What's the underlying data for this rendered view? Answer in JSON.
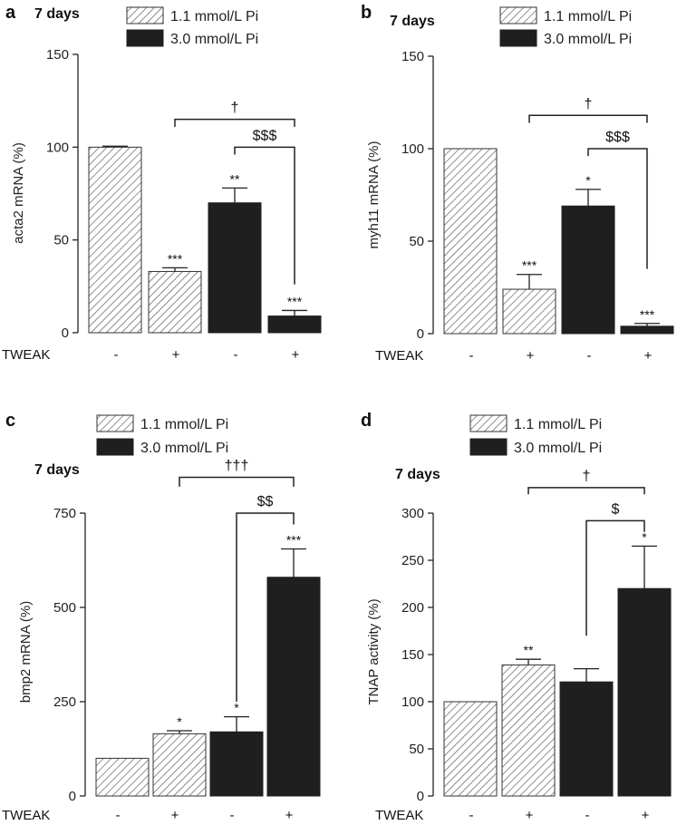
{
  "colors": {
    "axis": "#222222",
    "solid": "#1f1f1f",
    "hatch": "#555555",
    "bar_border": "#333333"
  },
  "legend_labels": [
    "1.1 mmol/L Pi",
    "3.0 mmol/L Pi"
  ],
  "chart_data": [
    {
      "panel": "a",
      "type": "bar",
      "title": "7 days",
      "ylabel": "acta2 mRNA (%)",
      "ylim": [
        0,
        150
      ],
      "yticks": [
        0,
        50,
        100,
        150
      ],
      "x_label": "TWEAK",
      "categories": [
        "-",
        "+",
        "-",
        "+"
      ],
      "groups": [
        "1.1 mmol/L Pi",
        "1.1 mmol/L Pi",
        "3.0 mmol/L Pi",
        "3.0 mmol/L Pi"
      ],
      "values": [
        100,
        33,
        70,
        9
      ],
      "errors": [
        0.5,
        2,
        8,
        3
      ],
      "significance": [
        "",
        "***",
        "**",
        "***"
      ],
      "brackets": [
        {
          "from": 1,
          "to": 3,
          "label": "†",
          "level": 115,
          "left_drop": 111,
          "right_drop": 111
        },
        {
          "from": 2,
          "to": 3,
          "label": "$$$",
          "level": 100,
          "left_drop": 96,
          "right_drop": 26
        }
      ]
    },
    {
      "panel": "b",
      "type": "bar",
      "title": "7 days",
      "ylabel": "myh11 mRNA (%)",
      "ylim": [
        0,
        150
      ],
      "yticks": [
        0,
        50,
        100,
        150
      ],
      "x_label": "TWEAK",
      "categories": [
        "-",
        "+",
        "-",
        "+"
      ],
      "groups": [
        "1.1 mmol/L Pi",
        "1.1 mmol/L Pi",
        "3.0 mmol/L Pi",
        "3.0 mmol/L Pi"
      ],
      "values": [
        100,
        24,
        69,
        4
      ],
      "errors": [
        0,
        8,
        9,
        1.5
      ],
      "significance": [
        "",
        "***",
        "*",
        "***"
      ],
      "brackets": [
        {
          "from": 1,
          "to": 3,
          "label": "†",
          "level": 118,
          "left_drop": 114,
          "right_drop": 114
        },
        {
          "from": 2,
          "to": 3,
          "label": "$$$",
          "level": 100,
          "left_drop": 96,
          "right_drop": 35
        }
      ]
    },
    {
      "panel": "c",
      "type": "bar",
      "title": "7 days",
      "ylabel": "bmp2 mRNA (%)",
      "ylim": [
        0,
        750
      ],
      "yticks": [
        0,
        250,
        500,
        750
      ],
      "x_label": "TWEAK",
      "categories": [
        "-",
        "+",
        "-",
        "+"
      ],
      "groups": [
        "1.1 mmol/L Pi",
        "1.1 mmol/L Pi",
        "3.0 mmol/L Pi",
        "3.0 mmol/L Pi"
      ],
      "values": [
        100,
        165,
        170,
        580
      ],
      "errors": [
        0,
        8,
        40,
        75
      ],
      "significance": [
        "",
        "*",
        "*",
        "***"
      ],
      "brackets": [
        {
          "from": 1,
          "to": 3,
          "label": "†††",
          "level": 845,
          "left_drop": 820,
          "right_drop": 820
        },
        {
          "from": 2,
          "to": 3,
          "label": "$$",
          "level": 750,
          "left_drop": 250,
          "right_drop": 720
        }
      ]
    },
    {
      "panel": "d",
      "type": "bar",
      "title": "7 days",
      "ylabel": "TNAP activity (%)",
      "ylim": [
        0,
        300
      ],
      "yticks": [
        0,
        50,
        100,
        150,
        200,
        250,
        300
      ],
      "x_label": "TWEAK",
      "categories": [
        "-",
        "+",
        "-",
        "+"
      ],
      "groups": [
        "1.1 mmol/L Pi",
        "1.1 mmol/L Pi",
        "3.0 mmol/L Pi",
        "3.0 mmol/L Pi"
      ],
      "values": [
        100,
        139,
        121,
        220
      ],
      "errors": [
        0,
        6,
        14,
        45
      ],
      "significance": [
        "",
        "**",
        "",
        "*"
      ],
      "brackets": [
        {
          "from": 1,
          "to": 3,
          "label": "†",
          "level": 327,
          "left_drop": 320,
          "right_drop": 320
        },
        {
          "from": 2,
          "to": 3,
          "label": "$",
          "level": 292,
          "left_drop": 170,
          "right_drop": 280
        }
      ]
    }
  ]
}
